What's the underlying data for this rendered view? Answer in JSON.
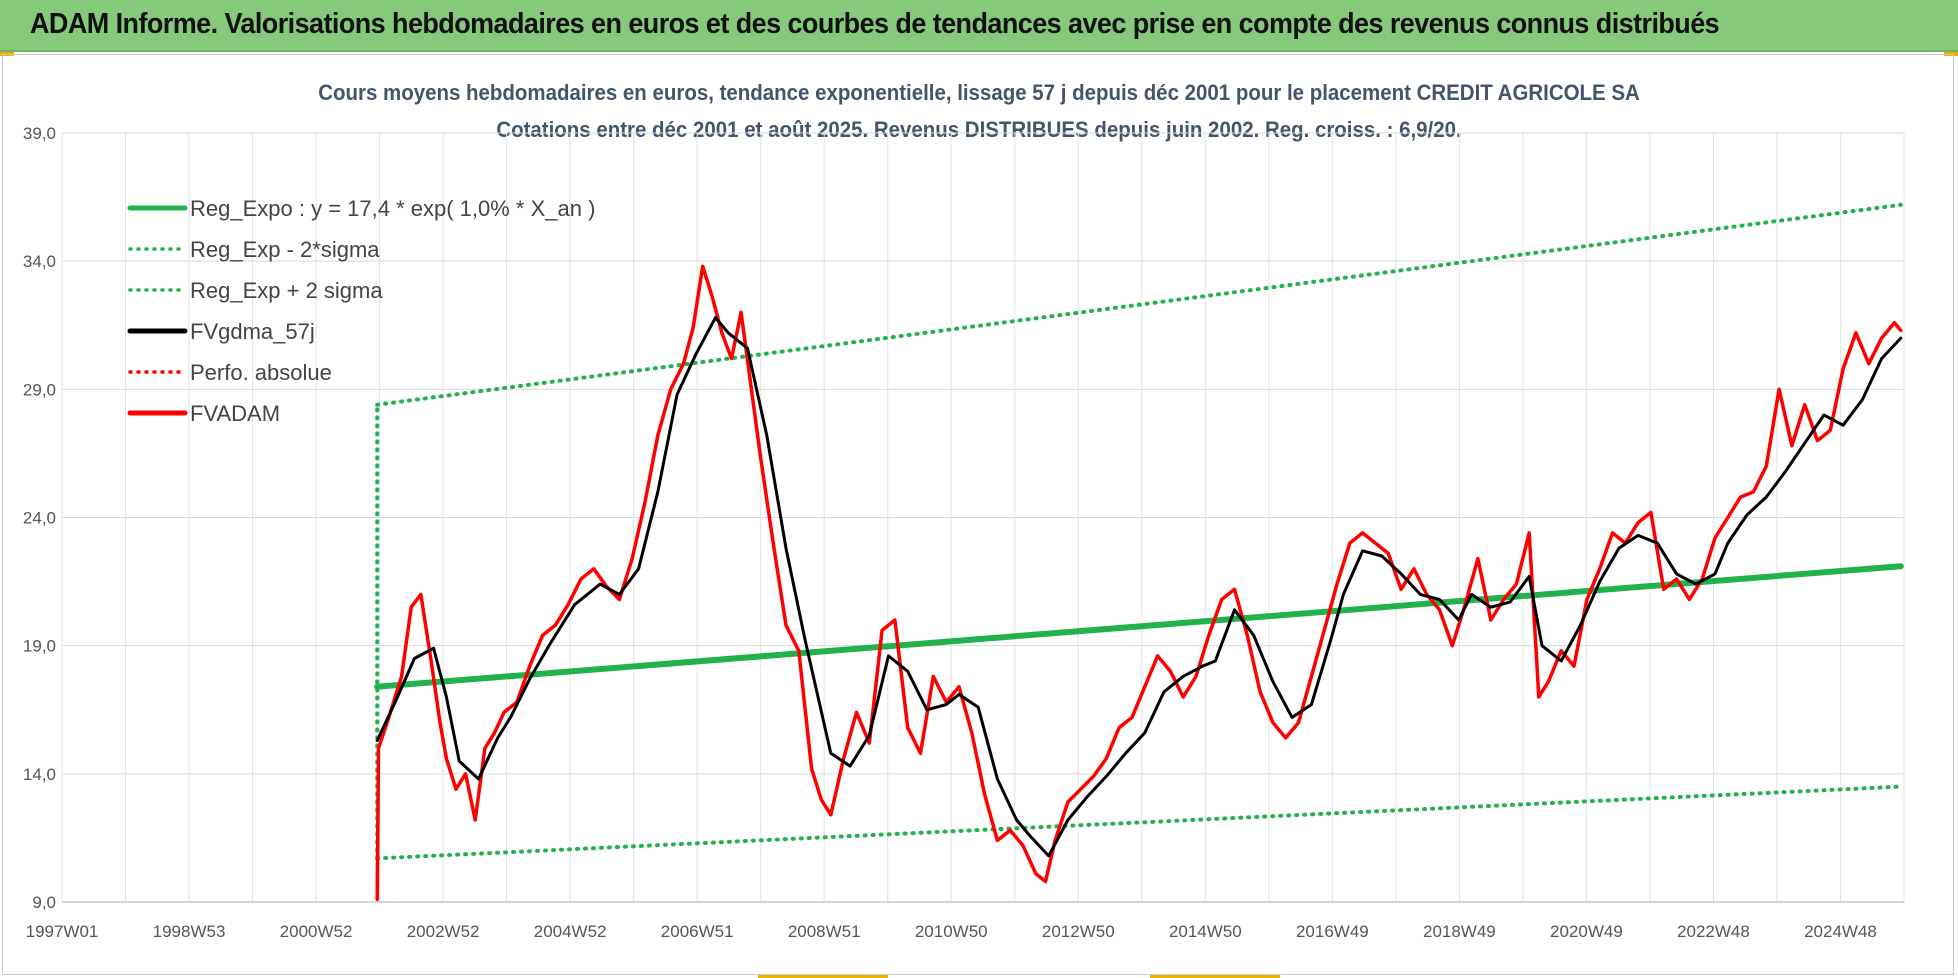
{
  "header": {
    "title": "ADAM Informe. Valorisations hebdomadaires en euros et des courbes de tendances avec prise en compte des revenus connus distribués"
  },
  "colors": {
    "banner": "#86c97b",
    "reg_green": "#22b24c",
    "fv_black": "#000000",
    "fvadam_red": "#ff0000",
    "title_text": "#44546a"
  },
  "chart_data": {
    "type": "line",
    "title_line1": "Cours moyens hebdomadaires en euros, tendance exponentielle, lissage 57 j depuis déc 2001 pour le placement CREDIT AGRICOLE SA",
    "title_line2": "Cotations entre déc 2001 et août 2025. Revenus DISTRIBUES depuis juin 2002. Reg. croiss. : 6,9/20.",
    "ylim": [
      9.0,
      39.0
    ],
    "y_ticks": [
      "9,0",
      "14,0",
      "19,0",
      "24,0",
      "29,0",
      "34,0",
      "39,0"
    ],
    "x_ticks": [
      "1997W01",
      "1998W53",
      "2000W52",
      "2002W52",
      "2004W52",
      "2006W51",
      "2008W51",
      "2010W50",
      "2012W50",
      "2014W50",
      "2016W49",
      "2018W49",
      "2020W49",
      "2022W48",
      "2024W48"
    ],
    "x_range_years": [
      1997.0,
      2025.75
    ],
    "legend": [
      {
        "label": "Reg_Expo : y = 17,4 * exp( 1,0% *  X_an )",
        "style": "solid",
        "color": "#22b24c"
      },
      {
        "label": "Reg_Exp - 2*sigma",
        "style": "dotted",
        "color": "#22b24c"
      },
      {
        "label": "Reg_Exp + 2 sigma",
        "style": "dotted",
        "color": "#22b24c"
      },
      {
        "label": "FVgdma_57j",
        "style": "solid",
        "color": "#000000"
      },
      {
        "label": "Perfo. absolue",
        "style": "dotted",
        "color": "#ff0000"
      },
      {
        "label": "FVADAM",
        "style": "solid",
        "color": "#ff0000"
      }
    ],
    "series": [
      {
        "name": "Reg_Expo : y = 17,4 * exp( 1,0% *  X_an )",
        "x": [
          2001.92,
          2025.7
        ],
        "values": [
          17.4,
          22.1
        ]
      },
      {
        "name": "Reg_Exp - 2*sigma",
        "x": [
          2001.92,
          2025.7
        ],
        "values": [
          10.7,
          13.5
        ]
      },
      {
        "name": "Reg_Exp + 2 sigma",
        "x": [
          2001.92,
          2025.7
        ],
        "values": [
          28.4,
          36.2
        ]
      },
      {
        "name": "FVgdma_57j",
        "x": [
          2001.92,
          2002.2,
          2002.5,
          2002.8,
          2003.0,
          2003.2,
          2003.5,
          2003.8,
          2004.0,
          2004.3,
          2004.6,
          2005.0,
          2005.4,
          2005.7,
          2006.0,
          2006.3,
          2006.6,
          2006.9,
          2007.2,
          2007.4,
          2007.7,
          2008.0,
          2008.3,
          2008.6,
          2008.8,
          2009.0,
          2009.3,
          2009.6,
          2009.9,
          2010.2,
          2010.5,
          2010.8,
          2011.0,
          2011.3,
          2011.6,
          2011.9,
          2012.1,
          2012.4,
          2012.7,
          2013.0,
          2013.3,
          2013.6,
          2013.9,
          2014.2,
          2014.5,
          2014.8,
          2015.0,
          2015.3,
          2015.6,
          2015.9,
          2016.2,
          2016.5,
          2016.8,
          2017.0,
          2017.3,
          2017.6,
          2017.9,
          2018.2,
          2018.5,
          2018.8,
          2019.0,
          2019.3,
          2019.6,
          2019.9,
          2020.1,
          2020.4,
          2020.7,
          2021.0,
          2021.3,
          2021.6,
          2021.9,
          2022.2,
          2022.5,
          2022.8,
          2023.0,
          2023.3,
          2023.6,
          2023.9,
          2024.2,
          2024.5,
          2024.8,
          2025.1,
          2025.4,
          2025.7
        ],
        "values": [
          15.3,
          16.8,
          18.5,
          18.9,
          17.0,
          14.5,
          13.8,
          15.4,
          16.2,
          17.7,
          19.0,
          20.6,
          21.4,
          21.0,
          22.0,
          25.0,
          28.8,
          30.4,
          31.8,
          31.2,
          30.6,
          27.2,
          22.8,
          19.2,
          17.0,
          14.8,
          14.3,
          15.5,
          18.6,
          18.0,
          16.5,
          16.7,
          17.1,
          16.6,
          13.8,
          12.2,
          11.6,
          10.8,
          12.2,
          13.1,
          13.9,
          14.8,
          15.6,
          17.2,
          17.8,
          18.2,
          18.4,
          20.4,
          19.4,
          17.6,
          16.2,
          16.7,
          19.2,
          21.0,
          22.7,
          22.5,
          21.8,
          21.0,
          20.8,
          20.0,
          21.0,
          20.5,
          20.7,
          21.7,
          19.0,
          18.4,
          19.8,
          21.5,
          22.8,
          23.3,
          23.0,
          21.8,
          21.4,
          21.8,
          23.0,
          24.1,
          24.8,
          25.8,
          26.9,
          28.0,
          27.6,
          28.6,
          30.2,
          31.0
        ]
      },
      {
        "name": "FVADAM",
        "x": [
          2001.92,
          2001.94,
          2002.1,
          2002.3,
          2002.45,
          2002.6,
          2002.75,
          2002.9,
          2003.0,
          2003.15,
          2003.3,
          2003.45,
          2003.6,
          2003.75,
          2003.9,
          2004.1,
          2004.3,
          2004.5,
          2004.7,
          2004.9,
          2005.1,
          2005.3,
          2005.5,
          2005.7,
          2005.9,
          2006.1,
          2006.3,
          2006.5,
          2006.7,
          2006.85,
          2007.0,
          2007.15,
          2007.3,
          2007.45,
          2007.6,
          2007.75,
          2007.9,
          2008.1,
          2008.3,
          2008.5,
          2008.7,
          2008.85,
          2009.0,
          2009.2,
          2009.4,
          2009.6,
          2009.8,
          2010.0,
          2010.2,
          2010.4,
          2010.6,
          2010.8,
          2011.0,
          2011.2,
          2011.4,
          2011.6,
          2011.8,
          2012.0,
          2012.2,
          2012.35,
          2012.5,
          2012.7,
          2012.9,
          2013.1,
          2013.3,
          2013.5,
          2013.7,
          2013.9,
          2014.1,
          2014.3,
          2014.5,
          2014.7,
          2014.9,
          2015.1,
          2015.3,
          2015.5,
          2015.7,
          2015.9,
          2016.1,
          2016.3,
          2016.5,
          2016.7,
          2016.9,
          2017.1,
          2017.3,
          2017.5,
          2017.7,
          2017.9,
          2018.1,
          2018.3,
          2018.5,
          2018.7,
          2018.9,
          2019.1,
          2019.3,
          2019.5,
          2019.7,
          2019.9,
          2020.05,
          2020.2,
          2020.4,
          2020.6,
          2020.8,
          2021.0,
          2021.2,
          2021.4,
          2021.6,
          2021.8,
          2022.0,
          2022.2,
          2022.4,
          2022.6,
          2022.8,
          2023.0,
          2023.2,
          2023.4,
          2023.6,
          2023.8,
          2024.0,
          2024.2,
          2024.4,
          2024.6,
          2024.8,
          2025.0,
          2025.2,
          2025.4,
          2025.6,
          2025.7
        ],
        "values": [
          9.1,
          15.0,
          16.2,
          17.8,
          20.5,
          21.0,
          18.6,
          16.0,
          14.6,
          13.4,
          14.0,
          12.2,
          15.0,
          15.6,
          16.4,
          16.8,
          18.2,
          19.4,
          19.8,
          20.6,
          21.6,
          22.0,
          21.3,
          20.8,
          22.4,
          24.6,
          27.2,
          29.0,
          30.0,
          31.4,
          33.8,
          32.6,
          31.2,
          30.2,
          32.0,
          29.2,
          26.4,
          23.0,
          19.8,
          18.8,
          14.2,
          13.0,
          12.4,
          14.6,
          16.4,
          15.2,
          19.6,
          20.0,
          15.8,
          14.8,
          17.8,
          16.8,
          17.4,
          15.6,
          13.2,
          11.4,
          11.8,
          11.2,
          10.1,
          9.8,
          11.4,
          12.9,
          13.4,
          13.9,
          14.6,
          15.8,
          16.2,
          17.4,
          18.6,
          18.0,
          17.0,
          17.8,
          19.4,
          20.8,
          21.2,
          19.4,
          17.2,
          16.0,
          15.4,
          16.0,
          17.8,
          19.6,
          21.4,
          23.0,
          23.4,
          23.0,
          22.6,
          21.2,
          22.0,
          21.0,
          20.4,
          19.0,
          20.6,
          22.4,
          20.0,
          20.8,
          21.4,
          23.4,
          17.0,
          17.6,
          18.8,
          18.2,
          20.8,
          22.0,
          23.4,
          23.0,
          23.8,
          24.2,
          21.2,
          21.6,
          20.8,
          21.6,
          23.2,
          24.0,
          24.8,
          25.0,
          26.0,
          29.0,
          26.8,
          28.4,
          27.0,
          27.4,
          29.8,
          31.2,
          30.0,
          31.0,
          31.6,
          31.3
        ]
      }
    ]
  }
}
